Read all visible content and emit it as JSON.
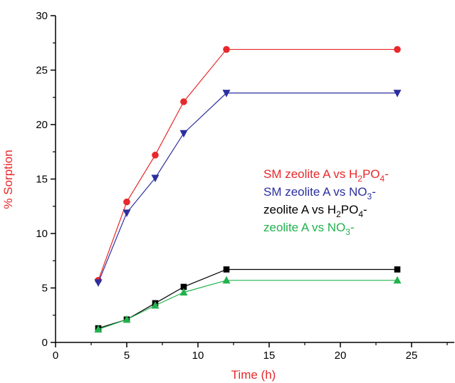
{
  "chart_data": {
    "type": "line",
    "xlabel": "Time (h)",
    "ylabel": "% Sorption",
    "xlim": [
      0,
      28
    ],
    "ylim": [
      0,
      30
    ],
    "xticks": [
      0,
      5,
      10,
      15,
      20,
      25
    ],
    "yticks": [
      0,
      5,
      10,
      15,
      20,
      25,
      30
    ],
    "grid": false,
    "legend_position": "right",
    "series": [
      {
        "name": "SM zeolite A vs H2PO4-",
        "legend": {
          "pre": "SM zeolite A vs H",
          "sub1": "2",
          "mid": "PO",
          "sub2": "4",
          "post": "-"
        },
        "color": "#e8282b",
        "marker": "circle",
        "x": [
          3,
          5,
          7,
          9,
          12,
          24
        ],
        "y": [
          5.7,
          12.9,
          17.2,
          22.1,
          26.9,
          26.9
        ]
      },
      {
        "name": "SM zeolite A vs NO3-",
        "legend": {
          "pre": "SM zeolite A vs NO",
          "sub1": "3",
          "mid": "",
          "sub2": "",
          "post": "-"
        },
        "color": "#2b2f9e",
        "marker": "triangle-down",
        "x": [
          3,
          5,
          7,
          9,
          12,
          24
        ],
        "y": [
          5.5,
          11.9,
          15.1,
          19.2,
          22.9,
          22.9
        ]
      },
      {
        "name": "zeolite A vs H2PO4-",
        "legend": {
          "pre": "zeolite A vs H",
          "sub1": "2",
          "mid": "PO",
          "sub2": "4",
          "post": "-"
        },
        "color": "#000000",
        "marker": "square",
        "x": [
          3,
          5,
          7,
          9,
          12,
          24
        ],
        "y": [
          1.3,
          2.1,
          3.6,
          5.1,
          6.7,
          6.7
        ]
      },
      {
        "name": "zeolite A vs NO3-",
        "legend": {
          "pre": "zeolite A vs NO",
          "sub1": "3",
          "mid": "",
          "sub2": "",
          "post": "-"
        },
        "color": "#22b24c",
        "marker": "triangle-up",
        "x": [
          3,
          5,
          7,
          9,
          12,
          24
        ],
        "y": [
          1.2,
          2.1,
          3.4,
          4.6,
          5.7,
          5.7
        ]
      }
    ]
  }
}
